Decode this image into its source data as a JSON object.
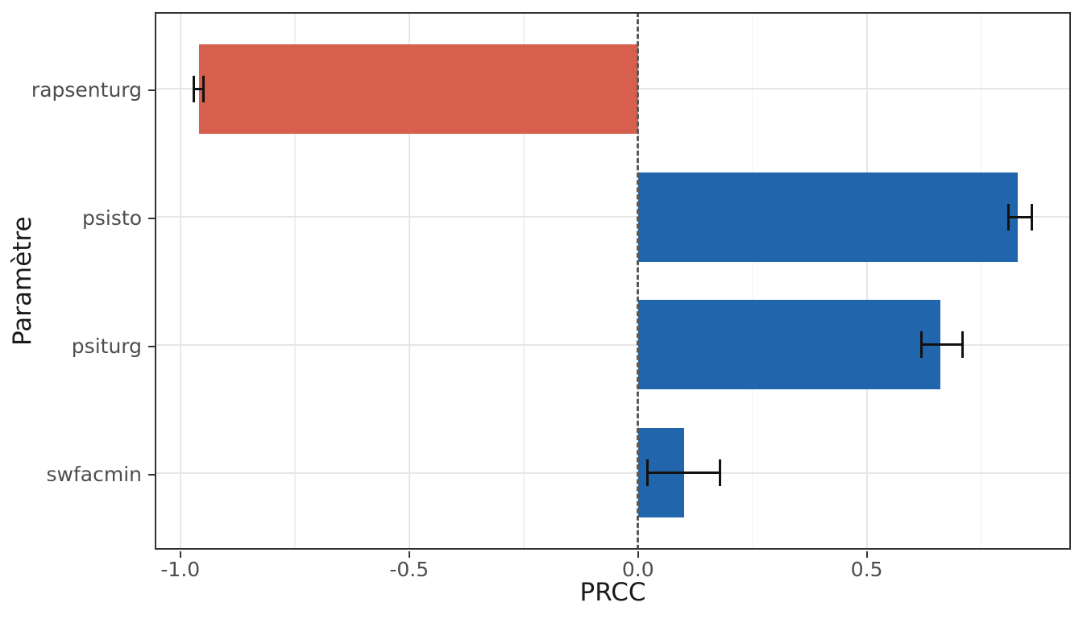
{
  "figure": {
    "background": "#FFFFFF",
    "panel_border_color": "#333333",
    "grid_major_color": "#E6E6E6",
    "grid_minor_color": "#F1F1F1",
    "tick_label_color": "#4D4D4D",
    "axis_title_color": "#1A1A1A",
    "error_bar_color": "#111111",
    "reference_line_color": "#595959"
  },
  "chart_data": {
    "type": "bar",
    "orientation": "horizontal",
    "title": "",
    "xlabel": "PRCC",
    "ylabel": "Paramètre",
    "categories": [
      "rapsenturg",
      "psisto",
      "psiturg",
      "swfacmin"
    ],
    "values": [
      -0.96,
      0.83,
      0.66,
      0.1
    ],
    "error_low": [
      -0.97,
      0.81,
      0.62,
      0.02
    ],
    "error_high": [
      -0.95,
      0.86,
      0.71,
      0.18
    ],
    "bar_colors": [
      "#D6604D",
      "#2166AC",
      "#2166AC",
      "#2166AC"
    ],
    "negative_color": "#D6604D",
    "positive_color": "#2166AC",
    "x_ticks": [
      -1.0,
      -0.5,
      0.0,
      0.5
    ],
    "x_tick_labels": [
      "-1.0",
      "-0.5",
      "0.0",
      "0.5"
    ],
    "x_minor_ticks": [
      -0.75,
      -0.25,
      0.25,
      0.75
    ],
    "xlim": [
      -1.056,
      0.946
    ],
    "reference_line_x": 0,
    "bar_width_fraction": 0.7,
    "grid": "x: major+minor, y: major only",
    "legend": false
  }
}
